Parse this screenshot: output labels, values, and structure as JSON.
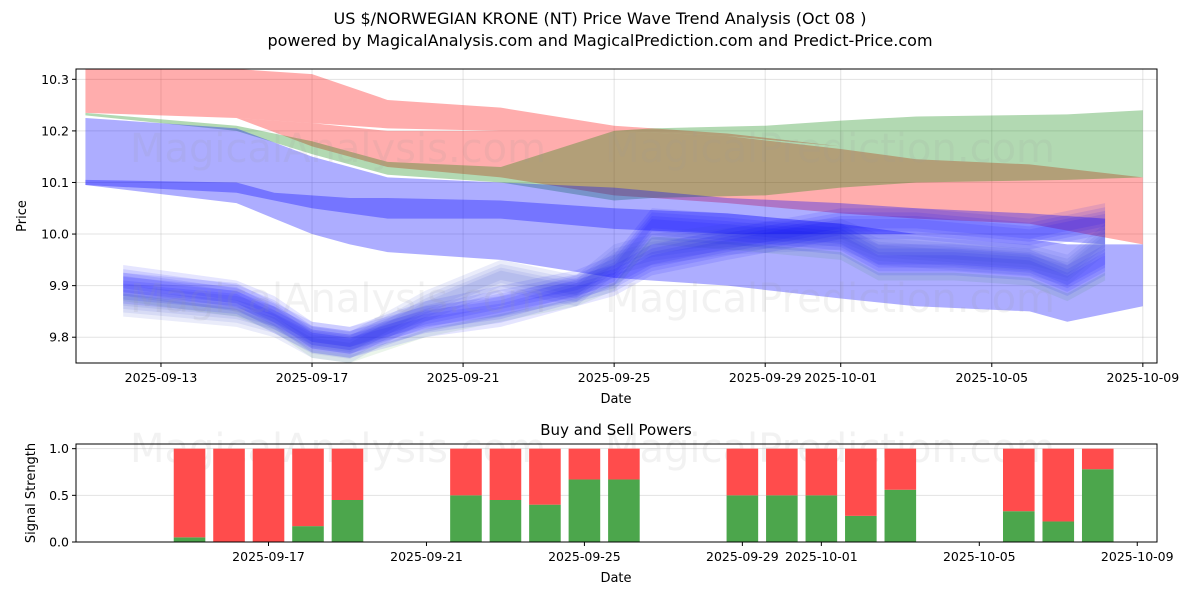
{
  "header": {
    "title": "US $/NORWEGIAN KRONE (NT) Price Wave Trend Analysis (Oct 08 )",
    "subtitle": "powered by MagicalAnalysis.com and MagicalPrediction.com and Predict-Price.com"
  },
  "watermarks": [
    "MagicalAnalysis.com",
    "MagicalPrediction.com"
  ],
  "chart_data": [
    {
      "type": "area",
      "title": "",
      "xlabel": "Date",
      "ylabel": "Price",
      "ylim": [
        9.75,
        10.32
      ],
      "xlim": [
        "2025-09-10T18:00",
        "2025-10-09T09:00"
      ],
      "yticks": [
        9.8,
        9.9,
        10.0,
        10.1,
        10.2,
        10.3
      ],
      "ytick_labels": [
        "9.8",
        "9.9",
        "10.0",
        "10.1",
        "10.2",
        "10.3"
      ],
      "xticks": [
        "2025-09-13",
        "2025-09-17",
        "2025-09-21",
        "2025-09-25",
        "2025-09-29",
        "2025-10-01",
        "2025-10-05",
        "2025-10-09"
      ],
      "grid": true,
      "colors": {
        "red": "#ff0000",
        "green": "#008000",
        "blue": "#0000ff"
      },
      "bands": [
        {
          "name": "red-upper-band",
          "color": "red",
          "opacity": 0.32,
          "x": [
            "2025-09-11",
            "2025-09-15",
            "2025-09-17",
            "2025-09-19",
            "2025-09-22",
            "2025-09-25",
            "2025-09-28",
            "2025-10-01",
            "2025-10-03",
            "2025-10-06",
            "2025-10-09"
          ],
          "upper": [
            10.33,
            10.33,
            10.31,
            10.26,
            10.245,
            10.21,
            10.195,
            10.17,
            10.15,
            10.135,
            10.11
          ],
          "lower": [
            10.235,
            10.225,
            10.215,
            10.205,
            10.2,
            10.2,
            10.19,
            10.17,
            10.15,
            10.135,
            10.11
          ]
        },
        {
          "name": "red-lower-band",
          "color": "red",
          "opacity": 0.32,
          "x": [
            "2025-09-11",
            "2025-09-15",
            "2025-09-17",
            "2025-09-19",
            "2025-09-22",
            "2025-09-25",
            "2025-09-28",
            "2025-10-01",
            "2025-10-03",
            "2025-10-06",
            "2025-10-09"
          ],
          "upper": [
            10.24,
            10.225,
            10.215,
            10.2,
            10.2,
            10.2,
            10.19,
            10.165,
            10.145,
            10.135,
            10.11
          ],
          "lower": [
            10.24,
            10.225,
            10.17,
            10.13,
            10.11,
            10.075,
            10.06,
            10.04,
            10.03,
            10.02,
            9.98
          ]
        },
        {
          "name": "green-band",
          "color": "green",
          "opacity": 0.3,
          "x": [
            "2025-09-11",
            "2025-09-15",
            "2025-09-17",
            "2025-09-19",
            "2025-09-22",
            "2025-09-25",
            "2025-09-26",
            "2025-09-29",
            "2025-10-01",
            "2025-10-03",
            "2025-10-07",
            "2025-10-09"
          ],
          "upper": [
            10.235,
            10.21,
            10.18,
            10.14,
            10.13,
            10.2,
            10.205,
            10.21,
            10.22,
            10.228,
            10.232,
            10.24
          ],
          "lower": [
            10.23,
            10.2,
            10.155,
            10.115,
            10.1,
            10.065,
            10.07,
            10.075,
            10.09,
            10.1,
            10.105,
            10.11
          ]
        },
        {
          "name": "blue-upper-band",
          "color": "blue",
          "opacity": 0.32,
          "x": [
            "2025-09-11",
            "2025-09-15",
            "2025-09-17",
            "2025-09-19",
            "2025-09-22",
            "2025-09-25",
            "2025-09-28",
            "2025-10-01",
            "2025-10-03",
            "2025-10-06",
            "2025-10-08"
          ],
          "upper": [
            10.225,
            10.205,
            10.15,
            10.11,
            10.1,
            10.09,
            10.07,
            10.06,
            10.05,
            10.04,
            10.03
          ],
          "lower": [
            10.095,
            10.08,
            10.05,
            10.03,
            10.03,
            10.01,
            10.0,
            10.0,
            10.0,
            9.99,
            9.98
          ]
        },
        {
          "name": "blue-lower-band",
          "color": "blue",
          "opacity": 0.32,
          "x": [
            "2025-09-11",
            "2025-09-15",
            "2025-09-16",
            "2025-09-17",
            "2025-09-18",
            "2025-09-19",
            "2025-09-22",
            "2025-09-25",
            "2025-09-28",
            "2025-10-01",
            "2025-10-03",
            "2025-10-06",
            "2025-10-07",
            "2025-10-09"
          ],
          "upper": [
            10.105,
            10.1,
            10.08,
            10.075,
            10.07,
            10.07,
            10.065,
            10.05,
            10.04,
            10.02,
            10.0,
            9.99,
            9.98,
            9.98
          ],
          "lower": [
            10.095,
            10.06,
            10.03,
            10.0,
            9.98,
            9.965,
            9.95,
            9.915,
            9.9,
            9.875,
            9.86,
            9.85,
            9.83,
            9.86
          ]
        }
      ],
      "wave_lines": [
        {
          "name": "wave-band-1",
          "x": [
            "2025-09-12",
            "2025-09-15",
            "2025-09-16",
            "2025-09-17",
            "2025-09-18",
            "2025-09-20",
            "2025-09-22",
            "2025-09-24",
            "2025-09-25",
            "2025-09-26",
            "2025-09-28",
            "2025-10-01",
            "2025-10-02",
            "2025-10-04",
            "2025-10-06",
            "2025-10-07",
            "2025-10-08"
          ],
          "center": [
            9.91,
            9.88,
            9.85,
            9.8,
            9.79,
            9.84,
            9.87,
            9.9,
            9.93,
            10.02,
            10.01,
            9.99,
            9.95,
            9.95,
            9.94,
            9.91,
            9.95
          ]
        },
        {
          "name": "wave-band-2",
          "x": [
            "2025-09-12",
            "2025-09-15",
            "2025-09-16",
            "2025-09-17",
            "2025-09-18",
            "2025-09-20",
            "2025-09-22",
            "2025-09-24",
            "2025-09-25",
            "2025-09-26",
            "2025-09-28",
            "2025-10-01",
            "2025-10-02",
            "2025-10-04",
            "2025-10-06",
            "2025-10-07",
            "2025-10-08"
          ],
          "center": [
            9.87,
            9.85,
            9.83,
            9.79,
            9.78,
            9.86,
            9.92,
            9.89,
            9.95,
            9.97,
            9.99,
            10.0,
            9.97,
            9.96,
            9.95,
            9.93,
            9.99
          ]
        },
        {
          "name": "wave-band-3",
          "x": [
            "2025-09-12",
            "2025-09-15",
            "2025-09-17",
            "2025-09-18",
            "2025-09-20",
            "2025-09-22",
            "2025-09-25",
            "2025-09-26",
            "2025-09-28",
            "2025-10-01",
            "2025-10-03",
            "2025-10-06",
            "2025-10-08"
          ],
          "center": [
            9.895,
            9.875,
            9.8,
            9.79,
            9.83,
            9.85,
            9.91,
            9.95,
            9.98,
            10.02,
            10.02,
            10.0,
            10.03
          ]
        }
      ]
    },
    {
      "type": "bar",
      "title": "Buy and Sell Powers",
      "xlabel": "Date",
      "ylabel": "Signal Strength",
      "ylim": [
        0,
        1.05
      ],
      "yticks": [
        0.0,
        0.5,
        1.0
      ],
      "ytick_labels": [
        "0.0",
        "0.5",
        "1.0"
      ],
      "xticks": [
        "2025-09-17",
        "2025-09-21",
        "2025-09-25",
        "2025-09-29",
        "2025-10-01",
        "2025-10-05",
        "2025-10-09"
      ],
      "xlim": [
        "2025-09-12T03:00",
        "2025-10-09T12:00"
      ],
      "grid": true,
      "series_colors": {
        "buy": "#4ca64c",
        "sell": "#ff4c4c"
      },
      "categories": [
        "2025-09-15",
        "2025-09-16",
        "2025-09-17",
        "2025-09-18",
        "2025-09-19",
        "2025-09-22",
        "2025-09-23",
        "2025-09-24",
        "2025-09-25",
        "2025-09-26",
        "2025-09-29",
        "2025-09-30",
        "2025-10-01",
        "2025-10-02",
        "2025-10-03",
        "2025-10-06",
        "2025-10-07",
        "2025-10-08"
      ],
      "series": [
        {
          "name": "Buy",
          "values": [
            0.05,
            0.0,
            0.0,
            0.17,
            0.45,
            0.5,
            0.45,
            0.4,
            0.67,
            0.67,
            0.5,
            0.5,
            0.5,
            0.28,
            0.56,
            0.33,
            0.22,
            0.78
          ]
        },
        {
          "name": "Sell",
          "values": [
            0.95,
            1.0,
            1.0,
            0.83,
            0.55,
            0.5,
            0.55,
            0.6,
            0.33,
            0.33,
            0.5,
            0.5,
            0.5,
            0.72,
            0.44,
            0.67,
            0.78,
            0.22
          ]
        }
      ]
    }
  ]
}
